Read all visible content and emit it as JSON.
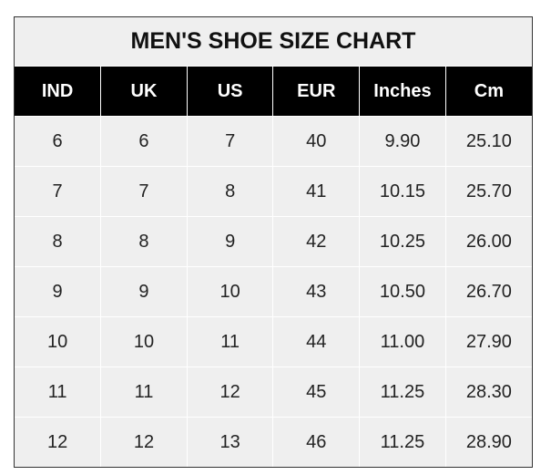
{
  "title": "MEN'S SHOE SIZE CHART",
  "columns": [
    "IND",
    "UK",
    "US",
    "EUR",
    "Inches",
    "Cm"
  ],
  "rows": [
    [
      "6",
      "6",
      "7",
      "40",
      "9.90",
      "25.10"
    ],
    [
      "7",
      "7",
      "8",
      "41",
      "10.15",
      "25.70"
    ],
    [
      "8",
      "8",
      "9",
      "42",
      "10.25",
      "26.00"
    ],
    [
      "9",
      "9",
      "10",
      "43",
      "10.50",
      "26.70"
    ],
    [
      "10",
      "10",
      "11",
      "44",
      "11.00",
      "27.90"
    ],
    [
      "11",
      "11",
      "12",
      "45",
      "11.25",
      "28.30"
    ],
    [
      "12",
      "12",
      "13",
      "46",
      "11.25",
      "28.90"
    ]
  ],
  "colors": {
    "header_bg": "#000000",
    "header_text": "#ffffff",
    "cell_bg": "#efefef"
  }
}
